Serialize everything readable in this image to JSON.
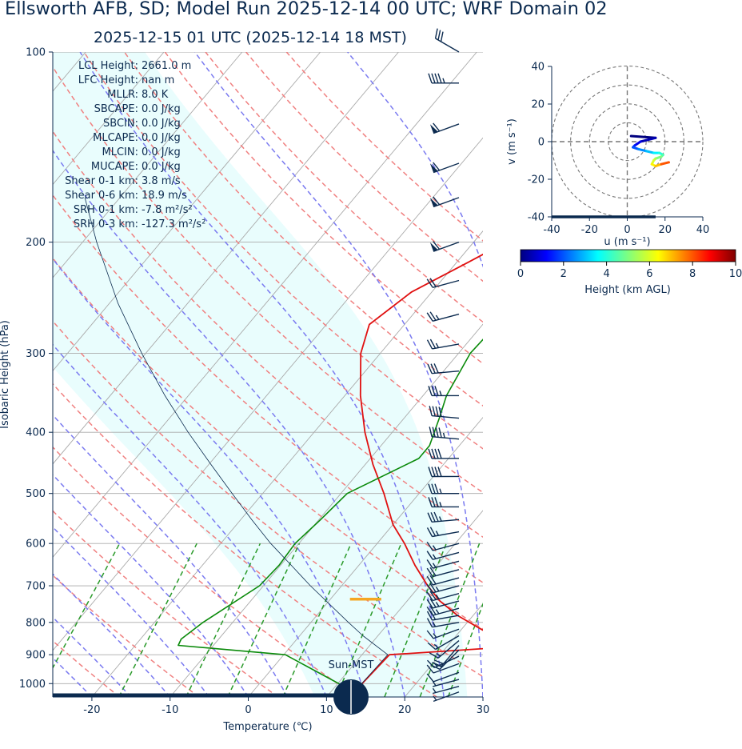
{
  "title": "Ellsworth AFB, SD; Model Run 2025-12-14 00 UTC; WRF Domain 02",
  "subtitle": "2025-12-15 01 UTC  (2025-12-14 18 MST)",
  "colors": {
    "temperature": "#e01010",
    "dewpoint": "#0a8a0a",
    "parcel": "#0b2a4f",
    "dry_adiabat": "#f08080",
    "moist_adiabat": "#7a7af0",
    "mixing_ratio": "#2a9a2a",
    "isotherm": "#aaaaaa",
    "cape_shade": "#e9fdfd",
    "lcl_marker": "#f5a623",
    "axis": "#0b2a4f"
  },
  "indices": [
    {
      "label": "LCL Height:",
      "value": "2661.0 m"
    },
    {
      "label": "LFC Height:",
      "value": "nan m"
    },
    {
      "label": "MLLR:",
      "value": "8.0 K"
    },
    {
      "label": "SBCAPE:",
      "value": "0.0 J/kg"
    },
    {
      "label": "SBCIN:",
      "value": "0.0 J/kg"
    },
    {
      "label": "MLCAPE:",
      "value": "0.0 J/kg"
    },
    {
      "label": "MLCIN:",
      "value": "0.0 J/kg"
    },
    {
      "label": "MUCAPE:",
      "value": "0.0 J/kg"
    },
    {
      "label": "Shear 0-1 km:",
      "value": "3.8 m/s"
    },
    {
      "label": "Shear 0-6 km:",
      "value": "18.9 m/s"
    },
    {
      "label": "SRH 0-1 km:",
      "value": "-7.8 m²/s²"
    },
    {
      "label": "SRH 0-3 km:",
      "value": "-127.3 m²/s²"
    }
  ],
  "sun_label": "Sun-MST",
  "chart_data": [
    {
      "type": "line",
      "name": "skew-t",
      "xlabel": "Temperature (℃)",
      "ylabel": "Isobaric Height (hPa)",
      "xlim": [
        -25,
        30
      ],
      "ylim": [
        1050,
        100
      ],
      "yscale": "log",
      "xticks": [
        -20,
        -10,
        0,
        10,
        20,
        30
      ],
      "yticks": [
        1000,
        900,
        800,
        700,
        600,
        500,
        400,
        300,
        200,
        100
      ],
      "grid": true,
      "series": [
        {
          "name": "Temperature",
          "p": [
            1031,
            900,
            875,
            860,
            820,
            780,
            740,
            700,
            650,
            600,
            560,
            500,
            450,
            400,
            350,
            300,
            270,
            240,
            215,
            190,
            160,
            140,
            120,
            100
          ],
          "values": [
            13,
            13.5,
            28,
            27,
            22.5,
            18,
            14.2,
            11,
            7.2,
            3.5,
            0,
            -4.5,
            -9,
            -13.5,
            -18,
            -22.5,
            -24.5,
            -22.6,
            -18.5,
            -14,
            -7.5,
            -3,
            0,
            2
          ]
        },
        {
          "name": "Dewpoint",
          "p": [
            1031,
            900,
            870,
            850,
            800,
            700,
            650,
            600,
            550,
            500,
            440,
            420,
            380,
            350,
            300,
            270,
            240,
            220,
            200,
            170,
            150,
            130,
            100
          ],
          "values": [
            13,
            0.2,
            -14.5,
            -14.8,
            -13.8,
            -10.5,
            -10.2,
            -10.5,
            -9.8,
            -9.2,
            -3.8,
            -3.8,
            -5.5,
            -7,
            -8.5,
            -8.2,
            -8.3,
            -8.9,
            -10.8,
            -14.5,
            -14.7,
            -12,
            -0.5
          ]
        },
        {
          "name": "Parcel",
          "p": [
            1031,
            900,
            840,
            800,
            700,
            650,
            600,
            550,
            500,
            450,
            400,
            350,
            300,
            250,
            200,
            170
          ],
          "values": [
            13,
            13.3,
            8.1,
            4.8,
            -4,
            -8.6,
            -13.6,
            -18.6,
            -23.9,
            -29.7,
            -36.1,
            -43,
            -50.5,
            -58.9,
            -68.2,
            -74.5
          ]
        }
      ],
      "lcl_marker": {
        "p": 735,
        "t": [
          2.5,
          6.5
        ]
      },
      "wind_barbs": {
        "p": [
          1031,
          1010,
          985,
          960,
          930,
          905,
          885,
          870,
          855,
          840,
          820,
          800,
          780,
          760,
          740,
          720,
          700,
          680,
          660,
          640,
          620,
          600,
          575,
          550,
          525,
          500,
          470,
          440,
          410,
          380,
          350,
          320,
          290,
          260,
          230,
          200,
          170,
          150,
          130,
          112,
          100
        ],
        "speed_kt": [
          5,
          5,
          5,
          10,
          10,
          15,
          20,
          20,
          15,
          15,
          15,
          15,
          20,
          25,
          25,
          25,
          25,
          20,
          20,
          15,
          15,
          15,
          25,
          35,
          35,
          35,
          40,
          40,
          45,
          40,
          35,
          30,
          25,
          25,
          20,
          60,
          60,
          60,
          60,
          45,
          30
        ],
        "dir_deg": [
          250,
          255,
          255,
          250,
          250,
          245,
          225,
          220,
          230,
          240,
          250,
          260,
          260,
          255,
          255,
          255,
          255,
          255,
          255,
          255,
          255,
          255,
          260,
          265,
          270,
          270,
          270,
          270,
          275,
          275,
          270,
          265,
          260,
          255,
          255,
          250,
          250,
          250,
          250,
          270,
          300
        ]
      }
    },
    {
      "type": "line",
      "name": "hodograph",
      "xlabel": "u (m s⁻¹)",
      "ylabel": "v (m s⁻¹)",
      "xlim": [
        -40,
        40
      ],
      "ylim": [
        -40,
        40
      ],
      "xticks": [
        -40,
        -20,
        0,
        20,
        40
      ],
      "yticks": [
        -40,
        -20,
        0,
        20,
        40
      ],
      "rings": [
        10,
        20,
        30,
        40
      ],
      "u": [
        2,
        15,
        7,
        4,
        3,
        6,
        10,
        14,
        17,
        19,
        18,
        15,
        14,
        13,
        15,
        18,
        22
      ],
      "v": [
        3,
        2,
        0,
        -2,
        -3,
        -4,
        -5,
        -6,
        -6,
        -7,
        -8,
        -9,
        -10,
        -12,
        -13,
        -12,
        -11
      ],
      "height_km": [
        0,
        0.5,
        1,
        1.5,
        2,
        2.5,
        3,
        3.5,
        4,
        4.5,
        5,
        5.5,
        6,
        6.5,
        7,
        8,
        10
      ]
    }
  ],
  "colorbar": {
    "label": "Height (km AGL)",
    "ticks": [
      "0",
      "2",
      "4",
      "6",
      "8",
      "10"
    ],
    "stops": [
      "#00007f",
      "#0000ff",
      "#00ffff",
      "#7fff7f",
      "#ffff00",
      "#ff0000",
      "#7f0000"
    ]
  }
}
